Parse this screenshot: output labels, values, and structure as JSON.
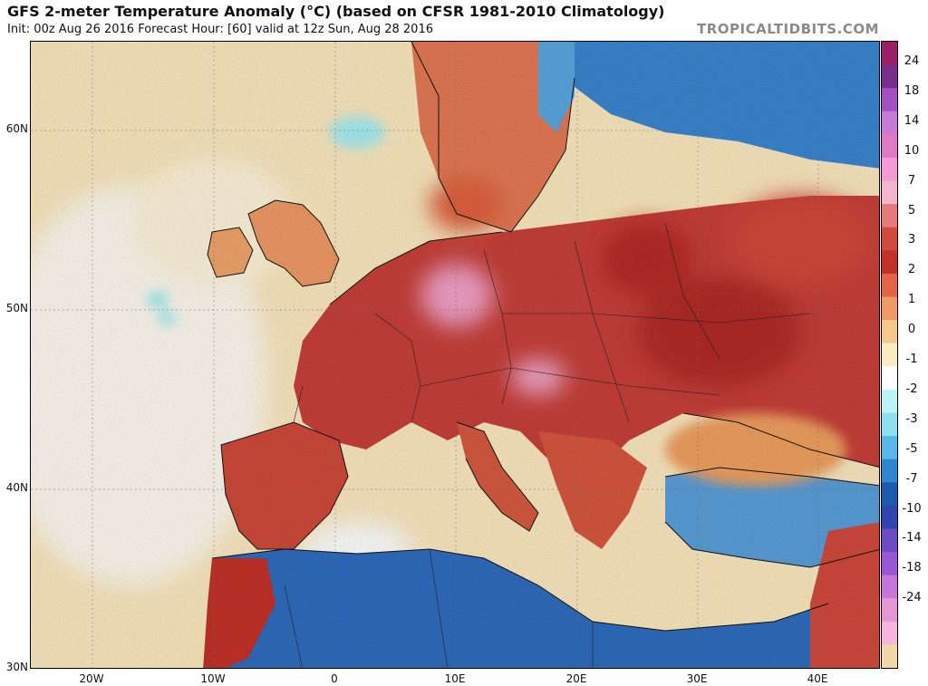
{
  "header": {
    "title": "GFS 2-meter Temperature Anomaly (°C) (based on CFSR 1981-2010 Climatology)",
    "subtitle": "Init: 00z Aug 26 2016   Forecast Hour: [60]   valid at 12z Sun, Aug 28 2016",
    "credit": "TROPICALTIDBITS.COM"
  },
  "axes": {
    "lat_labels": [
      "60N",
      "50N",
      "40N",
      "30N"
    ],
    "lon_labels": [
      "20W",
      "10W",
      "0",
      "10E",
      "20E",
      "30E",
      "40E"
    ]
  },
  "colorbar": {
    "labels": [
      "24",
      "18",
      "14",
      "10",
      "7",
      "5",
      "3",
      "2",
      "1",
      "0",
      "-1",
      "-2",
      "-3",
      "-5",
      "-7",
      "-10",
      "-14",
      "-18",
      "-24"
    ],
    "colors": [
      "#9a1f66",
      "#7a2e8c",
      "#a54fc4",
      "#c77ad6",
      "#e07ac5",
      "#f59ad6",
      "#f2b5cd",
      "#e47a7a",
      "#d24a3d",
      "#c33228",
      "#e06445",
      "#ef9a66",
      "#f5c98e",
      "#faebc0",
      "#ffffff",
      "#bdf3f5",
      "#8fe0ee",
      "#5ab8e6",
      "#2f86cf",
      "#1c5bab",
      "#2f46b0",
      "#6b4bc6",
      "#9a56d3",
      "#c675d8",
      "#e696d2",
      "#f6b5dc",
      "#f0d9a8"
    ]
  },
  "map": {
    "ocean_color": "#fbe9c0",
    "accent_warm": "#c33228",
    "accent_cold": "#1c5bab"
  }
}
